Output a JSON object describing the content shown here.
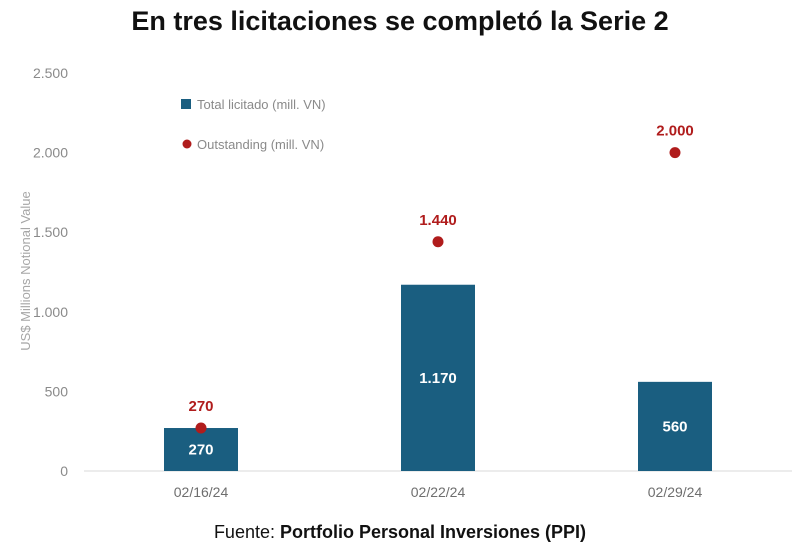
{
  "chart_data": {
    "type": "bar",
    "title": "En tres licitaciones se completó la Serie 2",
    "ylabel": "US$ Millions Notional Value",
    "xlabel": "",
    "categories": [
      "02/16/24",
      "02/22/24",
      "02/29/24"
    ],
    "ylim": [
      0,
      2500
    ],
    "yticks": [
      0,
      500,
      1000,
      1500,
      2000,
      2500
    ],
    "ytick_labels": [
      "0",
      "500",
      "1.000",
      "1.500",
      "2.000",
      "2.500"
    ],
    "series": [
      {
        "name": "Total licitado (mill. VN)",
        "kind": "bar",
        "color": "#1a5e80",
        "values": [
          270,
          1170,
          560
        ],
        "labels": [
          "270",
          "1.170",
          "560"
        ]
      },
      {
        "name": "Outstanding (mill. VN)",
        "kind": "scatter",
        "color": "#b01c1c",
        "values": [
          270,
          1440,
          2000
        ],
        "labels": [
          "270",
          "1.440",
          "2.000"
        ]
      }
    ],
    "legend": "top-left",
    "grid": false
  },
  "source": {
    "prefix": "Fuente: ",
    "name": "Portfolio Personal Inversiones (PPI)"
  }
}
